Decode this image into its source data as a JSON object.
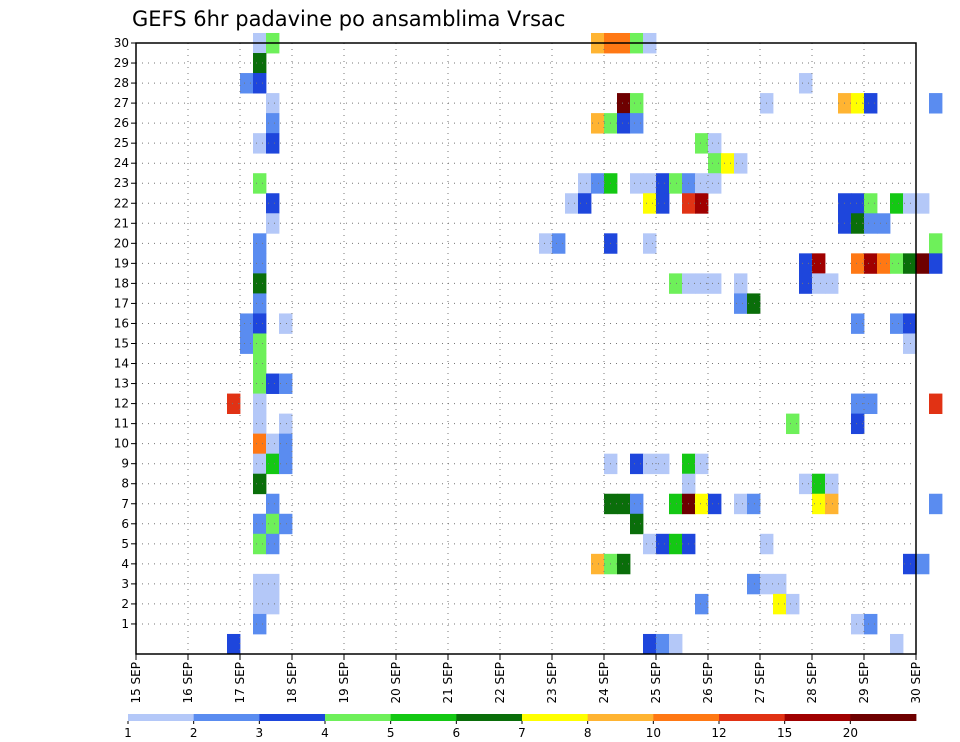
{
  "chart_data": {
    "type": "heatmap",
    "title": "GEFS 6hr padavine po ansamblima Vrsac",
    "y_ticks": [
      "1",
      "2",
      "3",
      "4",
      "5",
      "6",
      "7",
      "8",
      "9",
      "10",
      "11",
      "12",
      "13",
      "14",
      "15",
      "16",
      "17",
      "18",
      "19",
      "20",
      "21",
      "22",
      "23",
      "24",
      "25",
      "26",
      "27",
      "28",
      "29",
      "30"
    ],
    "x_ticks": [
      "15 SEP",
      "16 SEP",
      "17 SEP",
      "18 SEP",
      "19 SEP",
      "20 SEP",
      "21 SEP",
      "22 SEP",
      "23 SEP",
      "24 SEP",
      "25 SEP",
      "26 SEP",
      "27 SEP",
      "28 SEP",
      "29 SEP",
      "30 SEP"
    ],
    "x_range": [
      "15 SEP",
      "30 SEP"
    ],
    "y_range": [
      0,
      30
    ],
    "time_step_hours": 6,
    "grid": true,
    "legend": {
      "placement": "bottom",
      "labels": [
        "1",
        "2",
        "3",
        "4",
        "5",
        "6",
        "7",
        "8",
        "10",
        "12",
        "15",
        "20"
      ],
      "colors": [
        "#b4c8f8",
        "#5a8cf0",
        "#1e46dc",
        "#6ef05a",
        "#14c814",
        "#0a6e0a",
        "#ffff00",
        "#ffb432",
        "#ff7814",
        "#e13214",
        "#a00000",
        "#6e0000"
      ]
    },
    "cells": [
      [
        2.25,
        30,
        0
      ],
      [
        2.5,
        30,
        3
      ],
      [
        8.75,
        30,
        7
      ],
      [
        9,
        30,
        8
      ],
      [
        9.25,
        30,
        8
      ],
      [
        9.5,
        30,
        3
      ],
      [
        9.75,
        30,
        0
      ],
      [
        2.25,
        29,
        5
      ],
      [
        2,
        28,
        1
      ],
      [
        2.25,
        28,
        2
      ],
      [
        12.75,
        28,
        0
      ],
      [
        2.5,
        27,
        0
      ],
      [
        9.25,
        27,
        11
      ],
      [
        9.5,
        27,
        3
      ],
      [
        12,
        27,
        0
      ],
      [
        13.5,
        27,
        7
      ],
      [
        13.75,
        27,
        6
      ],
      [
        14,
        27,
        2
      ],
      [
        15.25,
        27,
        1
      ],
      [
        2.5,
        26,
        1
      ],
      [
        8.75,
        26,
        7
      ],
      [
        9,
        26,
        3
      ],
      [
        9.25,
        26,
        2
      ],
      [
        9.5,
        26,
        1
      ],
      [
        2.25,
        25,
        0
      ],
      [
        2.5,
        25,
        2
      ],
      [
        10.75,
        25,
        3
      ],
      [
        11,
        25,
        0
      ],
      [
        11,
        24,
        3
      ],
      [
        11.25,
        24,
        6
      ],
      [
        11.5,
        24,
        0
      ],
      [
        2.25,
        23,
        3
      ],
      [
        8.5,
        23,
        0
      ],
      [
        8.75,
        23,
        1
      ],
      [
        9,
        23,
        4
      ],
      [
        9.5,
        23,
        0
      ],
      [
        9.75,
        23,
        0
      ],
      [
        10,
        23,
        2
      ],
      [
        10.25,
        23,
        3
      ],
      [
        10.5,
        23,
        1
      ],
      [
        10.75,
        23,
        0
      ],
      [
        11,
        23,
        0
      ],
      [
        2.5,
        22,
        2
      ],
      [
        8.25,
        22,
        0
      ],
      [
        8.5,
        22,
        2
      ],
      [
        9.75,
        22,
        6
      ],
      [
        10,
        22,
        2
      ],
      [
        10.5,
        22,
        9
      ],
      [
        10.75,
        22,
        10
      ],
      [
        13.5,
        22,
        2
      ],
      [
        13.75,
        22,
        2
      ],
      [
        14,
        22,
        3
      ],
      [
        14.5,
        22,
        4
      ],
      [
        14.75,
        22,
        0
      ],
      [
        15,
        22,
        0
      ],
      [
        2.5,
        21,
        0
      ],
      [
        13.5,
        21,
        2
      ],
      [
        13.75,
        21,
        5
      ],
      [
        14,
        21,
        1
      ],
      [
        14.25,
        21,
        1
      ],
      [
        2.25,
        20,
        1
      ],
      [
        7.75,
        20,
        0
      ],
      [
        8,
        20,
        1
      ],
      [
        9,
        20,
        2
      ],
      [
        9.75,
        20,
        0
      ],
      [
        15.25,
        20,
        3
      ],
      [
        2.25,
        19,
        1
      ],
      [
        12.75,
        19,
        2
      ],
      [
        13,
        19,
        10
      ],
      [
        13.75,
        19,
        8
      ],
      [
        14,
        19,
        10
      ],
      [
        14.25,
        19,
        8
      ],
      [
        14.5,
        19,
        3
      ],
      [
        14.75,
        19,
        5
      ],
      [
        15,
        19,
        11
      ],
      [
        15.25,
        19,
        2
      ],
      [
        2.25,
        18,
        5
      ],
      [
        10.25,
        18,
        3
      ],
      [
        10.5,
        18,
        0
      ],
      [
        10.75,
        18,
        0
      ],
      [
        11,
        18,
        0
      ],
      [
        11.5,
        18,
        0
      ],
      [
        12.75,
        18,
        2
      ],
      [
        13,
        18,
        0
      ],
      [
        13.25,
        18,
        0
      ],
      [
        2.25,
        17,
        1
      ],
      [
        11.5,
        17,
        1
      ],
      [
        11.75,
        17,
        5
      ],
      [
        2,
        16,
        1
      ],
      [
        2.25,
        16,
        2
      ],
      [
        2.75,
        16,
        0
      ],
      [
        13.75,
        16,
        1
      ],
      [
        14.5,
        16,
        1
      ],
      [
        14.75,
        16,
        2
      ],
      [
        2,
        15,
        1
      ],
      [
        2.25,
        15,
        3
      ],
      [
        14.75,
        15,
        0
      ],
      [
        2.25,
        14,
        3
      ],
      [
        2.25,
        13,
        3
      ],
      [
        2.5,
        13,
        2
      ],
      [
        2.75,
        13,
        1
      ],
      [
        1.75,
        12,
        9
      ],
      [
        2.25,
        12,
        0
      ],
      [
        13.75,
        12,
        1
      ],
      [
        14,
        12,
        1
      ],
      [
        15.25,
        12,
        9
      ],
      [
        2.25,
        11,
        0
      ],
      [
        2.75,
        11,
        0
      ],
      [
        12.5,
        11,
        3
      ],
      [
        13.75,
        11,
        2
      ],
      [
        2.25,
        10,
        8
      ],
      [
        2.5,
        10,
        0
      ],
      [
        2.75,
        10,
        1
      ],
      [
        2.25,
        9,
        0
      ],
      [
        2.5,
        9,
        4
      ],
      [
        2.75,
        9,
        1
      ],
      [
        9,
        9,
        0
      ],
      [
        9.5,
        9,
        2
      ],
      [
        9.75,
        9,
        0
      ],
      [
        10,
        9,
        0
      ],
      [
        10.5,
        9,
        4
      ],
      [
        10.75,
        9,
        0
      ],
      [
        2.25,
        8,
        5
      ],
      [
        10.5,
        8,
        0
      ],
      [
        12.75,
        8,
        0
      ],
      [
        13,
        8,
        4
      ],
      [
        13.25,
        8,
        0
      ],
      [
        2.5,
        7,
        1
      ],
      [
        9,
        7,
        5
      ],
      [
        9.25,
        7,
        5
      ],
      [
        9.5,
        7,
        1
      ],
      [
        10.25,
        7,
        4
      ],
      [
        10.5,
        7,
        11
      ],
      [
        10.75,
        7,
        6
      ],
      [
        11,
        7,
        2
      ],
      [
        11.5,
        7,
        0
      ],
      [
        11.75,
        7,
        1
      ],
      [
        13,
        7,
        6
      ],
      [
        13.25,
        7,
        7
      ],
      [
        15.25,
        7,
        1
      ],
      [
        2.25,
        6,
        1
      ],
      [
        2.5,
        6,
        3
      ],
      [
        2.75,
        6,
        1
      ],
      [
        9.5,
        6,
        5
      ],
      [
        2.25,
        5,
        3
      ],
      [
        2.5,
        5,
        1
      ],
      [
        9.75,
        5,
        0
      ],
      [
        10,
        5,
        2
      ],
      [
        10.25,
        5,
        4
      ],
      [
        10.5,
        5,
        2
      ],
      [
        12,
        5,
        0
      ],
      [
        8.75,
        4,
        7
      ],
      [
        9,
        4,
        3
      ],
      [
        9.25,
        4,
        5
      ],
      [
        14.75,
        4,
        2
      ],
      [
        15,
        4,
        1
      ],
      [
        2.25,
        3,
        0
      ],
      [
        2.5,
        3,
        0
      ],
      [
        11.75,
        3,
        1
      ],
      [
        12,
        3,
        0
      ],
      [
        12.25,
        3,
        0
      ],
      [
        2.25,
        2,
        0
      ],
      [
        2.5,
        2,
        0
      ],
      [
        10.75,
        2,
        1
      ],
      [
        12.25,
        2,
        6
      ],
      [
        12.5,
        2,
        0
      ],
      [
        2.25,
        1,
        1
      ],
      [
        13.75,
        1,
        0
      ],
      [
        14,
        1,
        1
      ],
      [
        1.75,
        0,
        2
      ],
      [
        9.75,
        0,
        2
      ],
      [
        10,
        0,
        1
      ],
      [
        10.25,
        0,
        0
      ],
      [
        14.5,
        0,
        0
      ]
    ]
  }
}
